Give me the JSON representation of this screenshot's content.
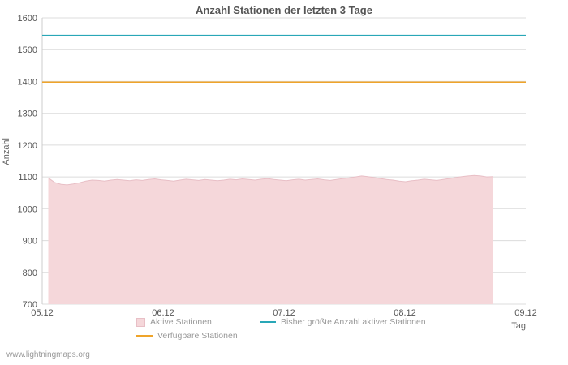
{
  "chart_data": {
    "type": "area",
    "title": "Anzahl Stationen der letzten 3 Tage",
    "xlabel": "Tag",
    "ylabel": "Anzahl",
    "ylim": [
      700,
      1600
    ],
    "ytick_step": 100,
    "x_ticks": [
      "05.12",
      "06.12",
      "07.12",
      "08.12",
      "09.12"
    ],
    "grid": true,
    "grid_color": "#dcdcdc",
    "axis_color": "#cccccc",
    "legend_position": "bottom",
    "series": [
      {
        "id": "aktive-stationen",
        "name": "Aktive Stationen",
        "kind": "area",
        "fill": "#f5d7da",
        "stroke": "#e8bfc6",
        "x_start": 0.05,
        "x_end": 3.73,
        "values": [
          1097,
          1083,
          1077,
          1075,
          1078,
          1082,
          1087,
          1090,
          1089,
          1087,
          1090,
          1092,
          1090,
          1088,
          1091,
          1089,
          1092,
          1094,
          1091,
          1089,
          1087,
          1090,
          1093,
          1091,
          1089,
          1092,
          1090,
          1088,
          1090,
          1093,
          1091,
          1094,
          1092,
          1090,
          1093,
          1095,
          1092,
          1090,
          1088,
          1091,
          1093,
          1090,
          1092,
          1094,
          1091,
          1089,
          1092,
          1095,
          1097,
          1100,
          1103,
          1101,
          1098,
          1095,
          1092,
          1090,
          1087,
          1085,
          1088,
          1090,
          1093,
          1091,
          1089,
          1092,
          1095,
          1098,
          1101,
          1103,
          1105,
          1103,
          1100,
          1101
        ]
      },
      {
        "id": "max-aktive-stationen",
        "name": "Bisher größte Anzahl aktiver Stationen",
        "kind": "hline",
        "color": "#29a7b7",
        "value": 1545
      },
      {
        "id": "verfuegbare-stationen",
        "name": "Verfügbare Stationen",
        "kind": "hline",
        "color": "#efa42a",
        "value": 1398
      }
    ]
  },
  "footer": {
    "site": "www.lightningmaps.org"
  }
}
